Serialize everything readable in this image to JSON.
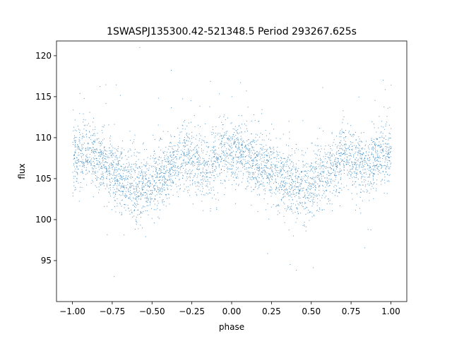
{
  "chart_data": {
    "type": "scatter",
    "title": "1SWASPJ135300.42-521348.5 Period 293267.625s",
    "xlabel": "phase",
    "ylabel": "flux",
    "xlim": [
      -1.1,
      1.1
    ],
    "ylim": [
      90.0,
      121.8
    ],
    "xticks": [
      -1.0,
      -0.75,
      -0.5,
      -0.25,
      0.0,
      0.25,
      0.5,
      0.75,
      1.0
    ],
    "xtick_labels": [
      "−1.00",
      "−0.75",
      "−0.50",
      "−0.25",
      "0.00",
      "0.25",
      "0.50",
      "0.75",
      "1.00"
    ],
    "yticks": [
      95,
      100,
      105,
      110,
      115,
      120
    ],
    "ytick_labels": [
      "95",
      "100",
      "105",
      "110",
      "115",
      "120"
    ],
    "grid": false,
    "legend": "none",
    "marker_color": "#1f77b4",
    "series": [
      {
        "x": [
          -1.0,
          -0.95,
          -0.9,
          -0.85,
          -0.8,
          -0.75,
          -0.7,
          -0.65,
          -0.6,
          -0.55,
          -0.5,
          -0.45,
          -0.4,
          -0.35,
          -0.3,
          -0.25,
          -0.2,
          -0.15,
          -0.1,
          -0.05,
          0.0,
          0.05,
          0.1,
          0.15,
          0.2,
          0.25,
          0.3,
          0.35,
          0.4,
          0.45,
          0.5,
          0.55,
          0.6,
          0.65,
          0.7,
          0.75,
          0.8,
          0.85,
          0.9,
          0.95,
          1.0
        ],
        "y": [
          107.5,
          108.0,
          108.5,
          107.5,
          107.0,
          106.0,
          105.0,
          104.5,
          104.0,
          104.0,
          104.5,
          105.0,
          106.0,
          107.0,
          108.0,
          107.5,
          106.5,
          106.0,
          107.5,
          108.5,
          108.0,
          108.5,
          108.0,
          107.0,
          106.5,
          106.0,
          105.0,
          104.5,
          104.0,
          104.0,
          104.5,
          105.0,
          106.0,
          107.0,
          108.0,
          107.5,
          106.5,
          106.5,
          107.5,
          108.5,
          108.0
        ],
        "scatter_sd": [
          2.2,
          2.0,
          2.0,
          2.0,
          2.0,
          2.0,
          2.0,
          2.0,
          2.2,
          2.2,
          2.2,
          2.0,
          2.0,
          2.0,
          2.0,
          2.0,
          2.0,
          2.0,
          2.0,
          2.0,
          2.0,
          2.0,
          2.0,
          2.0,
          2.0,
          2.0,
          2.0,
          2.0,
          2.2,
          2.2,
          2.2,
          2.0,
          2.0,
          2.0,
          2.0,
          2.0,
          2.0,
          2.0,
          2.0,
          2.0,
          2.2
        ]
      }
    ]
  }
}
